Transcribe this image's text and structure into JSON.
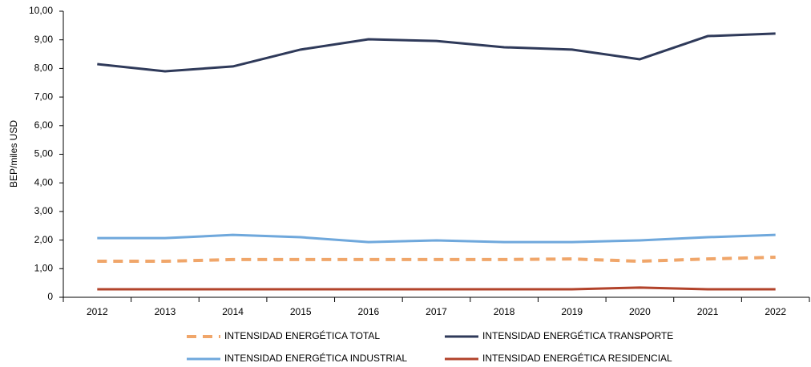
{
  "chart_data": {
    "type": "line",
    "y_label": "BEP/miles USD",
    "categories": [
      "2012",
      "2013",
      "2014",
      "2015",
      "2016",
      "2017",
      "2018",
      "2019",
      "2020",
      "2021",
      "2022"
    ],
    "series": [
      {
        "name": "INTENSIDAD ENERGÉTICA TOTAL",
        "color": "#f0a66a",
        "dashed": true,
        "values": [
          1.26,
          1.26,
          1.32,
          1.32,
          1.32,
          1.32,
          1.32,
          1.34,
          1.26,
          1.34,
          1.4
        ]
      },
      {
        "name": "INTENSIDAD ENERGÉTICA TRANSPORTE",
        "color": "#2f3a5a",
        "dashed": false,
        "values": [
          8.15,
          7.9,
          8.07,
          8.66,
          9.02,
          8.96,
          8.74,
          8.66,
          8.32,
          9.13,
          9.22
        ]
      },
      {
        "name": "INTENSIDAD ENERGÉTICA INDUSTRIAL",
        "color": "#6fa8dc",
        "dashed": false,
        "values": [
          2.07,
          2.07,
          2.18,
          2.1,
          1.93,
          1.99,
          1.93,
          1.93,
          1.99,
          2.1,
          2.18
        ]
      },
      {
        "name": "INTENSIDAD ENERGÉTICA RESIDENCIAL",
        "color": "#b2432b",
        "dashed": false,
        "values": [
          0.28,
          0.28,
          0.28,
          0.28,
          0.28,
          0.28,
          0.28,
          0.28,
          0.34,
          0.28,
          0.28
        ]
      }
    ],
    "ylim": [
      0,
      10
    ],
    "yticks": [
      0,
      {
        "value": 1,
        "label": "1,00"
      },
      {
        "value": 2,
        "label": "2,00"
      },
      {
        "value": 3,
        "label": "3,00"
      },
      {
        "value": 4,
        "label": "4,00"
      },
      {
        "value": 5,
        "label": "5,00"
      },
      {
        "value": 6,
        "label": "6,00"
      },
      {
        "value": 7,
        "label": "7,00"
      },
      {
        "value": 8,
        "label": "8,00"
      },
      {
        "value": 9,
        "label": "9,00"
      },
      {
        "value": 10,
        "label": "10,00"
      }
    ],
    "grid": false
  }
}
